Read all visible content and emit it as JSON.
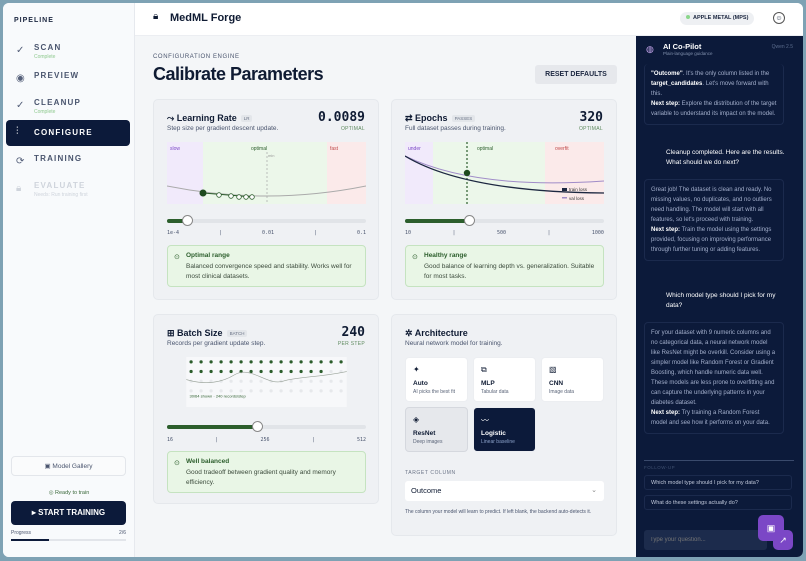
{
  "sidebar": {
    "heading": "PIPELINE",
    "steps": [
      {
        "label": "SCAN",
        "sub": "Complete",
        "icon": "check-circle-icon"
      },
      {
        "label": "PREVIEW",
        "sub": "",
        "icon": "eye-icon"
      },
      {
        "label": "CLEANUP",
        "sub": "Complete",
        "icon": "check-circle-icon"
      },
      {
        "label": "CONFIGURE",
        "sub": "",
        "icon": "sliders-icon"
      },
      {
        "label": "TRAINING",
        "sub": "",
        "icon": "training-icon"
      },
      {
        "label": "EVALUATE",
        "sub": "Needs: Run training first",
        "icon": "lock-icon"
      }
    ],
    "gallery": "Model Gallery",
    "ready": "Ready to train",
    "start": "START TRAINING",
    "progress_label": "Progress",
    "progress_value": "2/6",
    "progress_fraction": 0.33
  },
  "header": {
    "brand": "MedML Forge",
    "device": "APPLE METAL (MPS)"
  },
  "page": {
    "eyebrow": "CONFIGURATION ENGINE",
    "title": "Calibrate Parameters",
    "reset": "RESET DEFAULTS"
  },
  "lr": {
    "title": "Learning Rate",
    "tag": "LR",
    "desc": "Step size per gradient descent update.",
    "value": "0.0089",
    "status": "OPTIMAL",
    "zones": [
      "slow",
      "optimal",
      "fast"
    ],
    "min_label": "min",
    "ticks": [
      "1e-4",
      "|",
      "0.01",
      "|",
      "0.1"
    ],
    "slider_fraction": 0.1,
    "note_title": "Optimal range",
    "note": "Balanced convergence speed and stability. Works well for most clinical datasets."
  },
  "epochs": {
    "title": "Epochs",
    "tag": "PASSES",
    "desc": "Full dataset passes during training.",
    "value": "320",
    "status": "OPTIMAL",
    "zones": [
      "under",
      "optimal",
      "overfit"
    ],
    "legend": [
      "train loss",
      "val loss"
    ],
    "ticks": [
      "10",
      "|",
      "500",
      "|",
      "1000"
    ],
    "slider_fraction": 0.32,
    "note_title": "Healthy range",
    "note": "Good balance of learning depth vs. generalization. Suitable for most tasks."
  },
  "batch": {
    "title": "Batch Size",
    "tag": "BATCH",
    "desc": "Records per gradient update step.",
    "value": "240",
    "status": "PER STEP",
    "caption": "30/64 shown · 240 records/step",
    "ticks": [
      "16",
      "|",
      "256",
      "|",
      "512"
    ],
    "slider_fraction": 0.45,
    "note_title": "Well balanced",
    "note": "Good tradeoff between gradient quality and memory efficiency."
  },
  "arch": {
    "title": "Architecture",
    "desc": "Neural network model for training.",
    "options": [
      {
        "name": "Auto",
        "sub": "AI picks the best fit"
      },
      {
        "name": "MLP",
        "sub": "Tabular data"
      },
      {
        "name": "CNN",
        "sub": "Image data"
      },
      {
        "name": "ResNet",
        "sub": "Deep images"
      },
      {
        "name": "Logistic",
        "sub": "Linear baseline"
      }
    ],
    "selected": "Logistic",
    "target_label": "TARGET COLUMN",
    "target_value": "Outcome",
    "target_help": "The column your model will learn to predict. If left blank, the backend auto-detects it."
  },
  "chat": {
    "title": "AI Co-Pilot",
    "subtitle": "Plain-language guidance",
    "model": "Qwen 2.5",
    "m1a": "\"Outcome\"",
    "m1b": ". It's the only column listed in the ",
    "m1c": "target_candidates",
    "m1d": ". Let's move forward with this.",
    "m1e": "Next step:",
    "m1f": " Explore the distribution of the target variable to understand its impact on the model.",
    "u1": "Cleanup completed. Here are the results. What should we do next?",
    "m2a": "Great job! The dataset is clean and ready. No missing values, no duplicates, and no outliers need handling. The model will start with all features, so let's proceed with training.",
    "m2b": "Next step:",
    "m2c": " Train the model using the settings provided, focusing on improving performance through further tuning or adding features.",
    "u2": "Which model type should I pick for my data?",
    "m3a": "For your dataset with 9 numeric columns and no categorical data, a neural network model like ResNet might be overkill. Consider using a simpler model like Random Forest or Gradient Boosting, which handle numeric data well. These models are less prone to overfitting and can capture the underlying patterns in your diabetes dataset.",
    "m3b": "Next step:",
    "m3c": " Try training a Random Forest model and see how it performs on your data.",
    "followup_label": "FOLLOW-UP",
    "followups": [
      "Which model type should I pick for my data?",
      "What do these settings actually do?"
    ],
    "placeholder": "Type your question..."
  },
  "colors": {
    "navy": "#0c1a3a",
    "green": "#2c5e2c",
    "purple": "#7b47c6"
  }
}
